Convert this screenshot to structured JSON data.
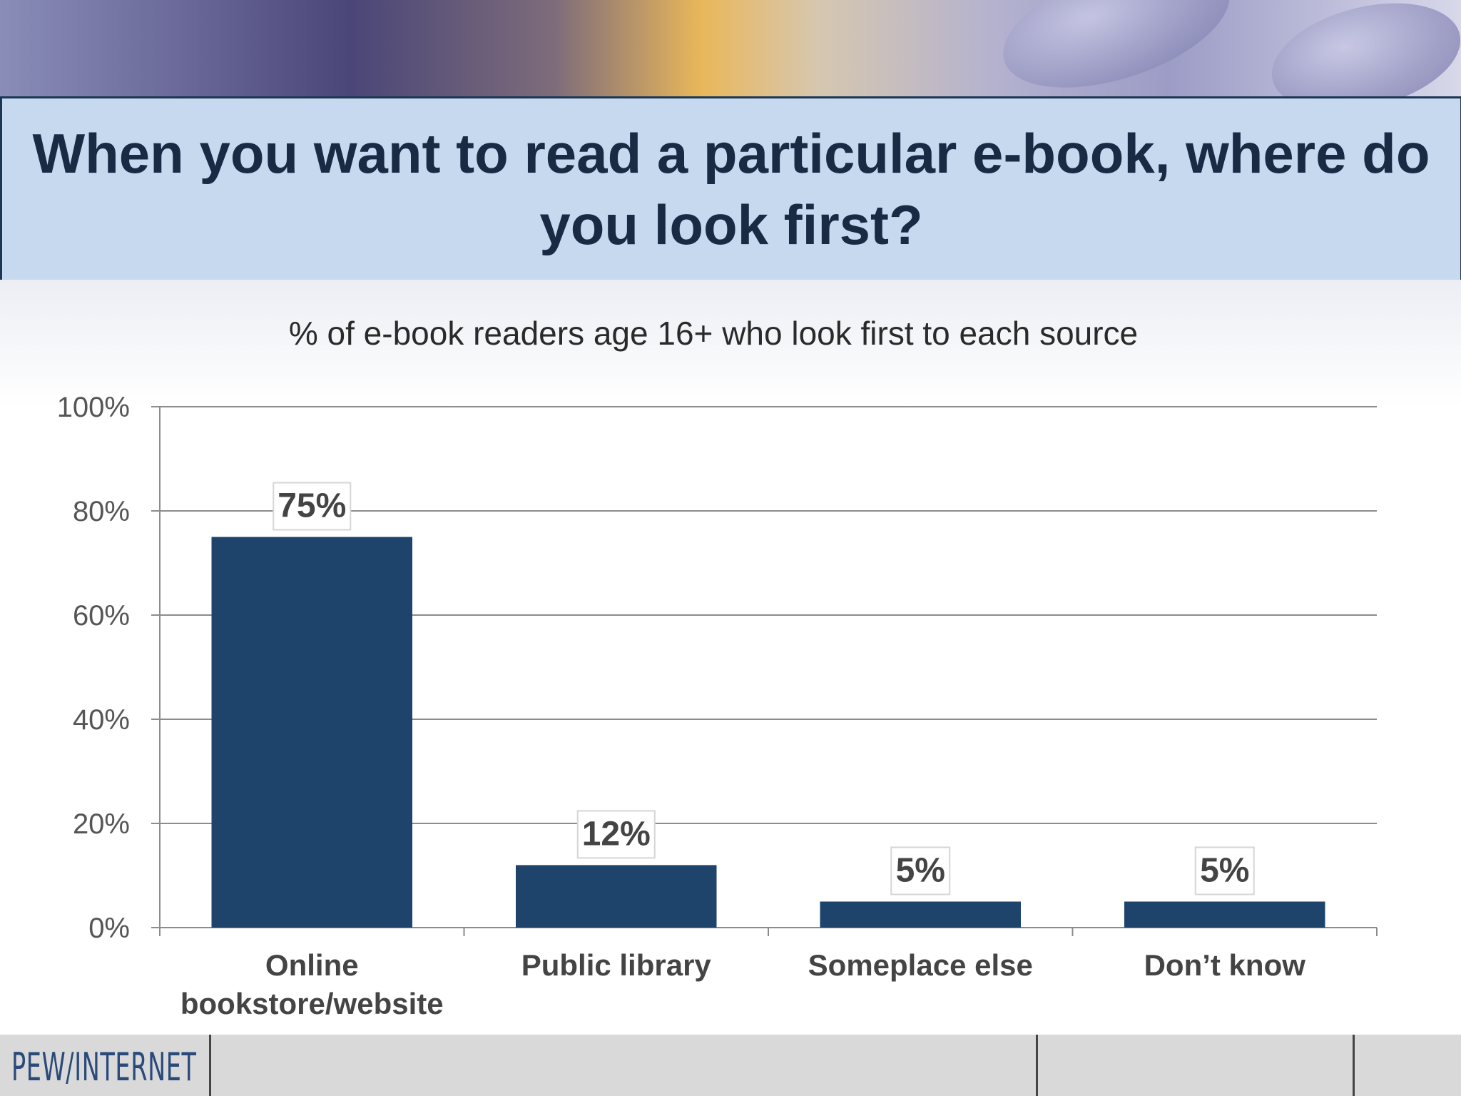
{
  "title": "When you want to read a particular e-book, where do you look first?",
  "footer": {
    "logo_text": "PEW/INTERNET"
  },
  "colors": {
    "bar": "#1e446c",
    "title_box": "#c6d9ef",
    "title_border": "#1c3656",
    "title_text": "#182a44"
  },
  "chart_data": {
    "type": "bar",
    "subtitle": "% of e-book readers age 16+ who look first to each source",
    "categories": [
      "Online bookstore/website",
      "Public library",
      "Someplace else",
      "Don’t know"
    ],
    "category_lines": [
      [
        "Online",
        "bookstore/website"
      ],
      [
        "Public library"
      ],
      [
        "Someplace else"
      ],
      [
        "Don’t know"
      ]
    ],
    "values": [
      75,
      12,
      5,
      5
    ],
    "data_labels": [
      "75%",
      "12%",
      "5%",
      "5%"
    ],
    "ylim": [
      0,
      100
    ],
    "yticks": [
      0,
      20,
      40,
      60,
      80,
      100
    ],
    "ytick_labels": [
      "0%",
      "20%",
      "40%",
      "60%",
      "80%",
      "100%"
    ],
    "grid": true,
    "xlabel": "",
    "ylabel": ""
  }
}
